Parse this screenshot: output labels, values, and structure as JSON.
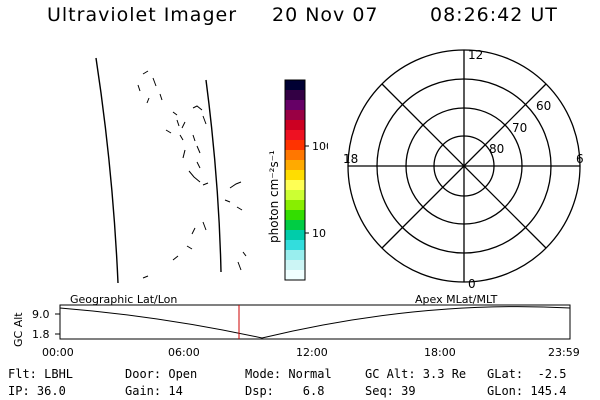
{
  "header": {
    "title": "Ultraviolet Imager",
    "date": "20 Nov 07",
    "time": "08:26:42 UT"
  },
  "colorbar": {
    "label": "photon cm⁻²s⁻¹",
    "tick_labels": [
      "100",
      "10"
    ],
    "colors": [
      "#000033",
      "#330044",
      "#660066",
      "#990044",
      "#cc0022",
      "#ee1122",
      "#ff3300",
      "#ff7700",
      "#ffaa00",
      "#ffdd00",
      "#ffff55",
      "#ccff33",
      "#88ee00",
      "#33dd00",
      "#00cc44",
      "#00ccaa",
      "#33dddd",
      "#99eeee",
      "#ccf5f5",
      "#f0ffff"
    ]
  },
  "polar_grid": {
    "mlt_labels": [
      "12",
      "18",
      "6",
      "0"
    ],
    "lat_labels": [
      "60",
      "70",
      "80"
    ]
  },
  "timeline": {
    "left_label": "Geographic Lat/Lon",
    "right_label": "Apex MLat/MLT",
    "axis_title": "GC Alt",
    "y_ticks": [
      "9.0",
      "1.8"
    ],
    "x_ticks": [
      "00:00",
      "06:00",
      "12:00",
      "18:00",
      "23:59"
    ]
  },
  "info": {
    "row1": {
      "flt": "Flt: LBHL",
      "door": "Door: Open",
      "mode": "Mode: Normal",
      "gcalt": "GC Alt: 3.3 Re",
      "glat": "GLat:  -2.5"
    },
    "row2": {
      "ip": "IP: 36.0",
      "gain": "Gain: 14",
      "dsp": "Dsp:    6.8",
      "seq": "Seq: 39",
      "glon": "GLon: 145.4"
    }
  }
}
